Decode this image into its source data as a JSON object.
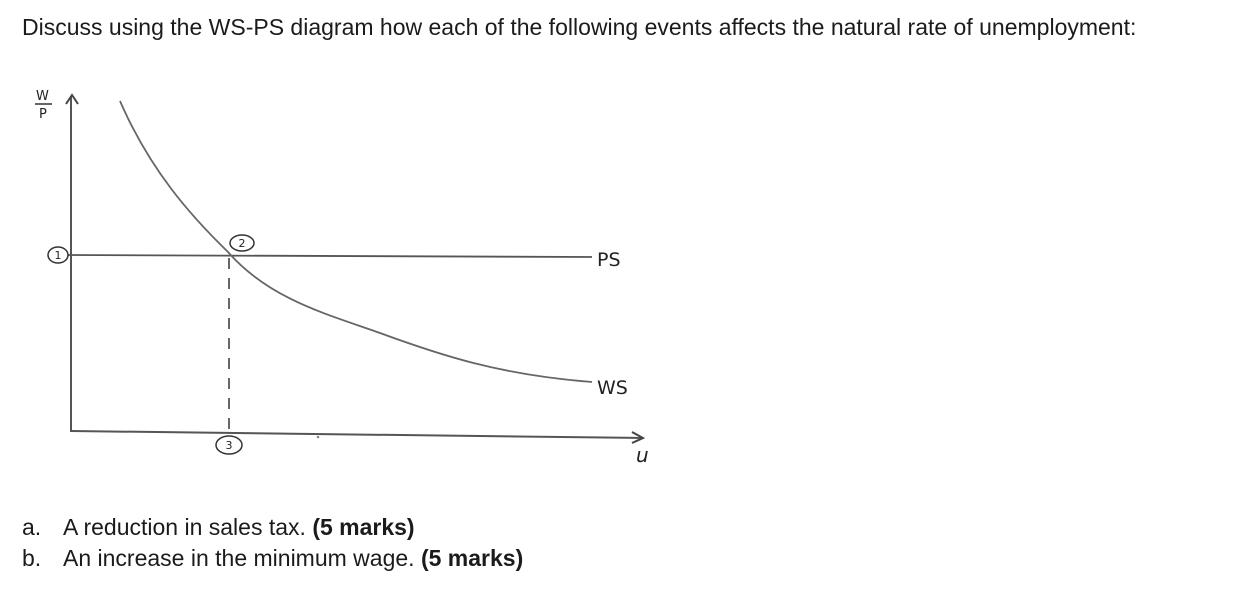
{
  "question": "Discuss using the WS-PS diagram how each of the following events affects the natural rate of unemployment:",
  "diagram": {
    "y_axis_label_num": "W",
    "y_axis_label_den": "P",
    "x_axis_label": "u",
    "curves": {
      "ps": "PS",
      "ws": "WS"
    },
    "markers": {
      "m1": "1",
      "m2": "2",
      "m3": "3"
    },
    "colors": {
      "line": "#555555",
      "curve": "#666666"
    }
  },
  "items": [
    {
      "marker": "a.",
      "text": "A reduction in sales tax.",
      "marks": "(5 marks)"
    },
    {
      "marker": "b.",
      "text": "An increase in the minimum wage.",
      "marks": "(5 marks)"
    }
  ]
}
